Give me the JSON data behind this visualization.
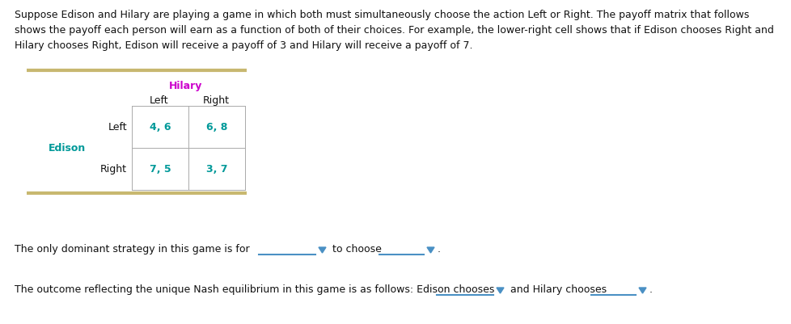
{
  "bg_color": "#ffffff",
  "intro_lines": [
    "Suppose Edison and Hilary are playing a game in which both must simultaneously choose the action Left or Right. The payoff matrix that follows",
    "shows the payoff each person will earn as a function of both of their choices. For example, the lower-right cell shows that if Edison chooses Right and",
    "Hilary chooses Right, Edison will receive a payoff of 3 and Hilary will receive a payoff of 7."
  ],
  "hilary_label": "Hilary",
  "hilary_color": "#cc00cc",
  "edison_label": "Edison",
  "edison_color": "#009999",
  "cell_payoffs": [
    [
      "4, 6",
      "6, 8"
    ],
    [
      "7, 5",
      "3, 7"
    ]
  ],
  "payoff_color": "#009999",
  "separator_color": "#c8b870",
  "border_color": "#aaaaaa",
  "dominant_text1": "The only dominant strategy in this game is for",
  "dominant_text2": "to choose",
  "nash_text1": "The outcome reflecting the unique Nash equilibrium in this game is as follows: Edison chooses",
  "nash_text2": "and Hilary chooses",
  "dropdown_color": "#4a90c4",
  "text_color": "#111111",
  "font_size": 9.0
}
